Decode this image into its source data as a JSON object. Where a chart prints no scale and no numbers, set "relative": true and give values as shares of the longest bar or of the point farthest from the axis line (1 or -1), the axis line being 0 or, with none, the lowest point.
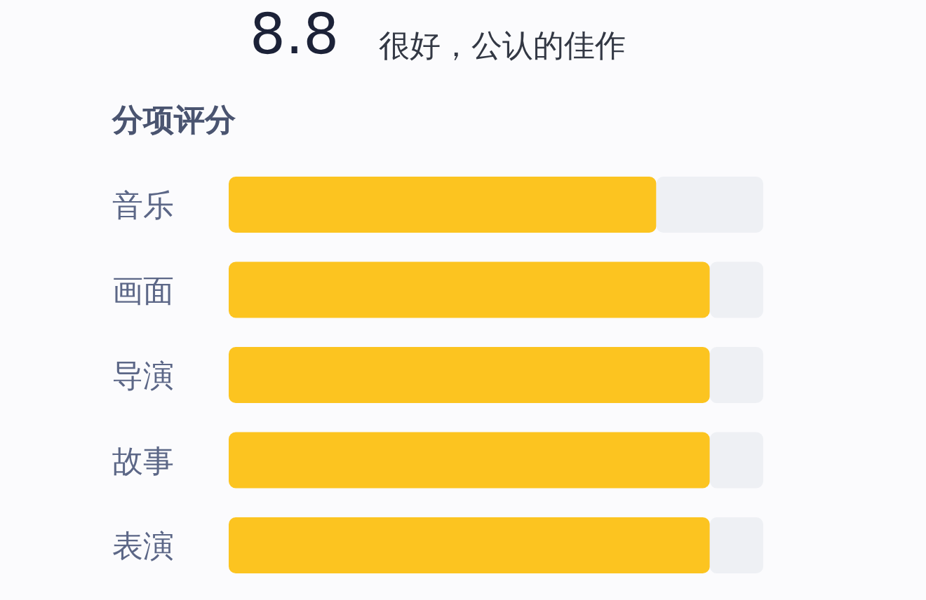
{
  "chart_data": {
    "type": "bar",
    "orientation": "horizontal",
    "stacked": true,
    "relative": true,
    "title": "分项评分",
    "annotations": [
      "8.8",
      "很好，公认的佳作"
    ],
    "categories": [
      "音乐",
      "画面",
      "导演",
      "故事",
      "表演"
    ],
    "series": [
      {
        "color": "#fcc420",
        "values": [
          0.8,
          0.9,
          0.9,
          0.9,
          0.9
        ]
      },
      {
        "color": "#eef0f4",
        "values": [
          0.2,
          0.1,
          0.1,
          0.1,
          0.1
        ]
      }
    ]
  }
}
